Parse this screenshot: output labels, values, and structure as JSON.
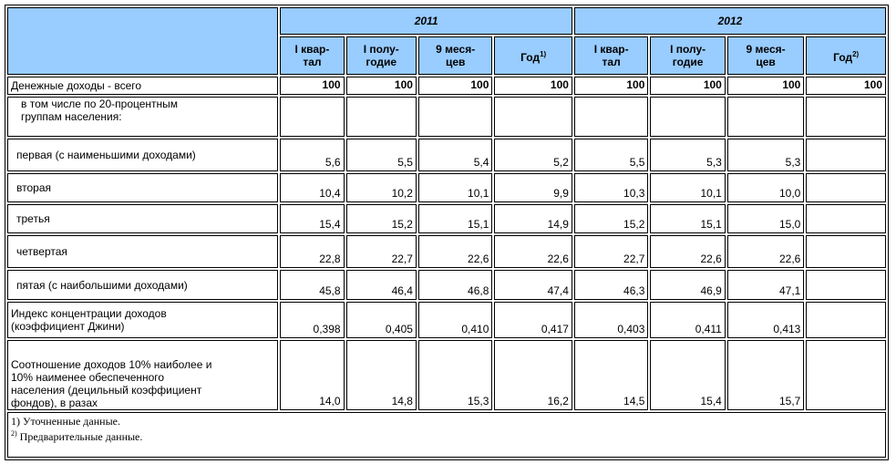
{
  "header": {
    "year1": "2011",
    "year2": "2012",
    "cols": [
      {
        "text": "I квар-\nтал",
        "sup": ""
      },
      {
        "text": "I полу-\nгодие",
        "sup": ""
      },
      {
        "text": "9 меся-\nцев",
        "sup": ""
      },
      {
        "text": "Год",
        "sup": "1)"
      },
      {
        "text": "I квар-\nтал",
        "sup": ""
      },
      {
        "text": "I полу-\nгодие",
        "sup": ""
      },
      {
        "text": "9 меся-\nцев",
        "sup": ""
      },
      {
        "text": "Год",
        "sup": "2)"
      }
    ]
  },
  "rows": [
    {
      "label": "Денежные доходы - всего",
      "values": [
        "100",
        "100",
        "100",
        "100",
        "100",
        "100",
        "100",
        "100"
      ]
    },
    {
      "label": "в том числе по 20-процентным\n   группам населения:",
      "values": [
        "",
        "",
        "",
        "",
        "",
        "",
        "",
        ""
      ]
    },
    {
      "label": "первая (с наименьшими доходами)",
      "values": [
        "5,6",
        "5,5",
        "5,4",
        "5,2",
        "5,5",
        "5,3",
        "5,3",
        ""
      ]
    },
    {
      "label": "вторая",
      "values": [
        "10,4",
        "10,2",
        "10,1",
        "9,9",
        "10,3",
        "10,1",
        "10,0",
        ""
      ]
    },
    {
      "label": "третья",
      "values": [
        "15,4",
        "15,2",
        "15,1",
        "14,9",
        "15,2",
        "15,1",
        "15,0",
        ""
      ]
    },
    {
      "label": "четвертая",
      "values": [
        "22,8",
        "22,7",
        "22,6",
        "22,6",
        "22,7",
        "22,6",
        "22,6",
        ""
      ]
    },
    {
      "label": "пятая (с наибольшими доходами)",
      "values": [
        "45,8",
        "46,4",
        "46,8",
        "47,4",
        "46,3",
        "46,9",
        "47,1",
        ""
      ]
    },
    {
      "label": "Индекс концентрации доходов\n(коэффициент Джини)",
      "values": [
        "0,398",
        "0,405",
        "0,410",
        "0,417",
        "0,403",
        "0,411",
        "0,413",
        ""
      ]
    },
    {
      "label": "Соотношение доходов 10% наиболее и\n10% наименее обеспеченного\nнаселения (децильный коэффициент\nфондов), в разах",
      "values": [
        "14,0",
        "14,8",
        "15,3",
        "16,2",
        "14,5",
        "15,4",
        "15,7",
        ""
      ]
    }
  ],
  "notes": {
    "note1_mark": "1)",
    "note1_text": " Уточненные данные.",
    "note2_mark": "2)",
    "note2_text": " Предварительные данные."
  }
}
